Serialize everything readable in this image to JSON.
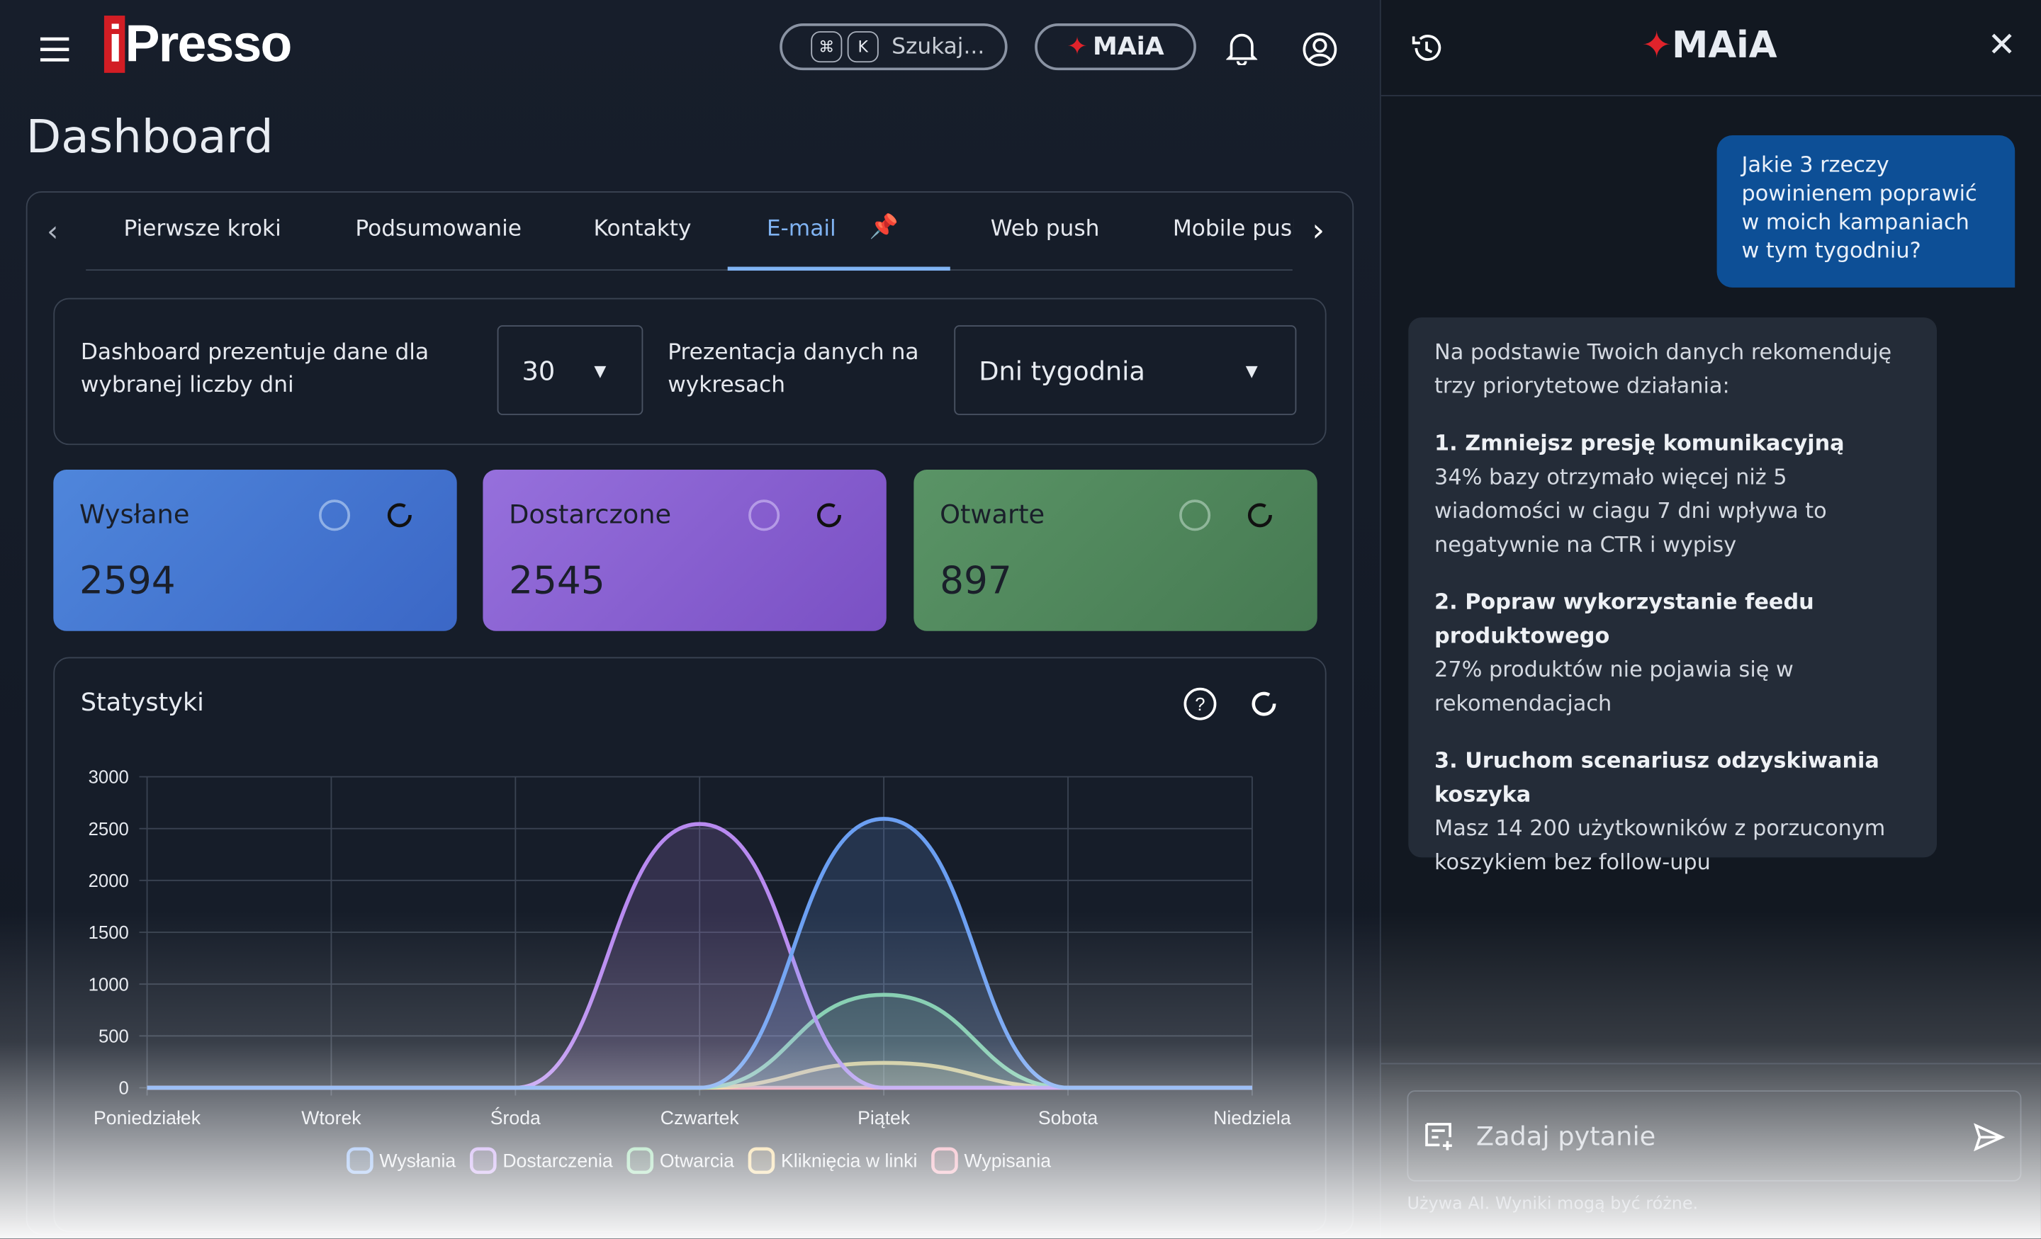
{
  "header": {
    "logo": "iPresso",
    "search": "Szukaj...",
    "search_keys": [
      "⌘",
      "K"
    ],
    "maia_button": "MAiA"
  },
  "dashboard": {
    "title": "Dashboard",
    "tabs": [
      "Pierwsze kroki",
      "Podsumowanie",
      "Kontakty",
      "E-mail",
      "Web push",
      "Mobile push"
    ],
    "filters": {
      "days_label": "Dashboard prezentuje dane dla wybranej liczby dni",
      "days_value": "30",
      "presentation_label": "Prezentacja danych na wykresach",
      "presentation_value": "Dni tygodnia"
    },
    "cards": [
      {
        "label": "Wysłane",
        "value": 2594
      },
      {
        "label": "Dostarczone",
        "value": 2545
      },
      {
        "label": "Otwarte",
        "value": 897
      }
    ],
    "stats_title": "Statystyki"
  },
  "chart_data": {
    "type": "line",
    "area": true,
    "categories": [
      "Poniedziałek",
      "Wtorek",
      "Środa",
      "Czwartek",
      "Piątek",
      "Sobota",
      "Niedziela"
    ],
    "series": [
      {
        "name": "Wysłania",
        "color": "#6b9ff2",
        "values": [
          0,
          0,
          0,
          0,
          2594,
          0,
          0
        ]
      },
      {
        "name": "Dostarczenia",
        "color": "#b88af0",
        "values": [
          0,
          0,
          0,
          2545,
          0,
          0,
          0
        ]
      },
      {
        "name": "Otwarcia",
        "color": "#7fd39c",
        "values": [
          0,
          0,
          0,
          0,
          897,
          0,
          0
        ]
      },
      {
        "name": "Kliknięcia w linki",
        "color": "#f3cf7c",
        "values": [
          0,
          0,
          0,
          0,
          240,
          0,
          0
        ]
      },
      {
        "name": "Wypisania",
        "color": "#ef8fa6",
        "values": [
          0,
          0,
          0,
          0,
          0,
          0,
          0
        ]
      }
    ],
    "ylim": [
      0,
      3000
    ],
    "yticks": [
      0,
      500,
      1000,
      1500,
      2000,
      2500,
      3000
    ],
    "grid": true
  },
  "maia": {
    "title": "MAiA",
    "user_message": "Jakie 3 rzeczy powinienem poprawić w moich kampaniach w tym tygodniu?",
    "reply_intro": "Na podstawie Twoich danych rekomenduję trzy priorytetowe działania:",
    "recommendations": [
      {
        "title": "1. Zmniejsz presję komunikacyjną",
        "text": "34% bazy otrzymało więcej niż 5 wiadomości w ciagu 7 dni wpływa to negatywnie na CTR i wypisy"
      },
      {
        "title": "2. Popraw wykorzystanie feedu produktowego",
        "text": "27% produktów nie pojawia się w rekomendacjach"
      },
      {
        "title": "3. Uruchom scenariusz odzyskiwania koszyka",
        "text": "Masz 14 200 użytkowników z porzuconym koszykiem bez follow-upu"
      }
    ],
    "input_placeholder": "Zadaj pytanie",
    "disclaimer": "Używa AI. Wyniki mogą być różne."
  }
}
